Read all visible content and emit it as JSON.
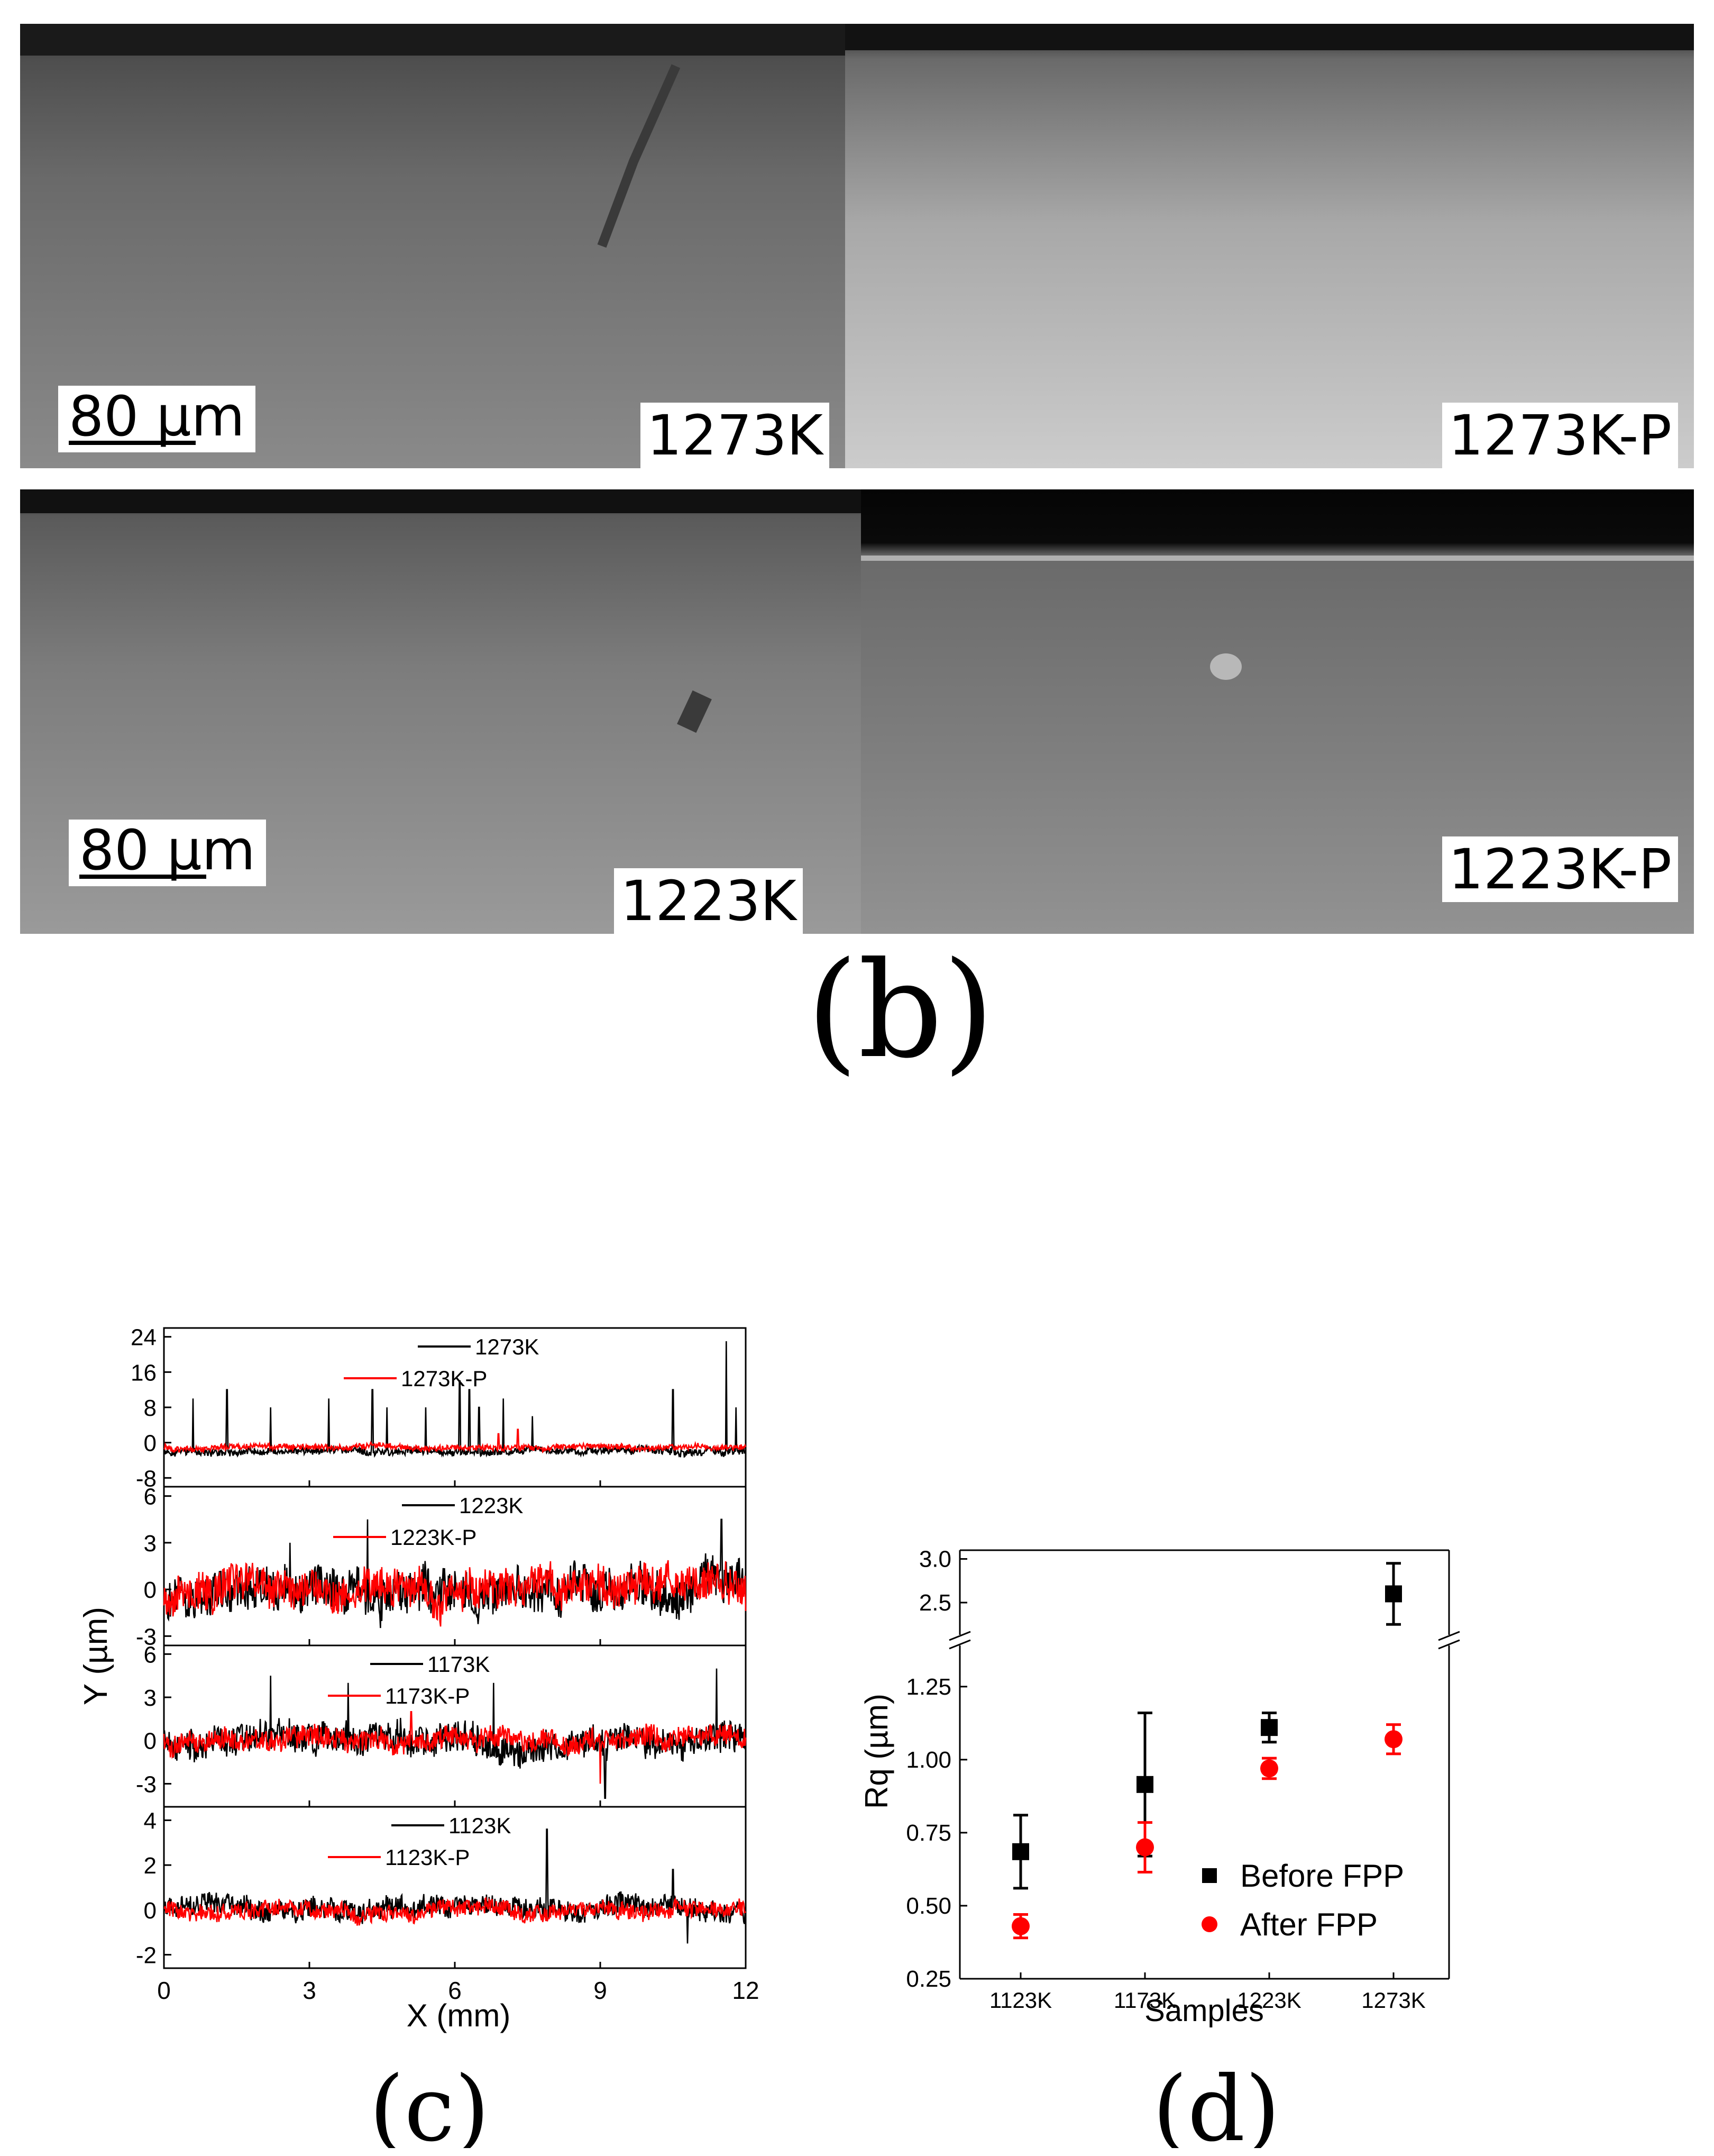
{
  "micrographs": [
    {
      "label": "1273K",
      "scale_bar": "80 µm"
    },
    {
      "label": "1273K-P"
    },
    {
      "label": "1223K",
      "scale_bar": "80 µm"
    },
    {
      "label": "1223K-P"
    }
  ],
  "panel_labels": {
    "b": "(b)",
    "c": "(c)",
    "d": "(d)"
  },
  "colors": {
    "black_series": "#000000",
    "red_series": "#ff0000",
    "micrograph_gray": "#6e6e6e"
  },
  "chart_data": [
    {
      "id": "c",
      "type": "line",
      "xlabel": "X (mm)",
      "ylabel": "Y (µm)",
      "xlim": [
        0,
        12
      ],
      "xticks": [
        "0",
        "3",
        "6",
        "9",
        "12"
      ],
      "panels": [
        {
          "series": [
            {
              "name": "1273K",
              "color": "#000000",
              "baseline": -2,
              "noise": 0.8,
              "spikes": [
                [
                  0.6,
                  10
                ],
                [
                  1.3,
                  12
                ],
                [
                  2.2,
                  8
                ],
                [
                  3.4,
                  10
                ],
                [
                  4.3,
                  12
                ],
                [
                  4.6,
                  8
                ],
                [
                  5.4,
                  8
                ],
                [
                  6.1,
                  14
                ],
                [
                  6.3,
                  12
                ],
                [
                  6.5,
                  8
                ],
                [
                  7.0,
                  10
                ],
                [
                  7.6,
                  6
                ],
                [
                  10.5,
                  12
                ],
                [
                  11.6,
                  23
                ],
                [
                  11.8,
                  8
                ]
              ]
            },
            {
              "name": "1273K-P",
              "color": "#ff0000",
              "baseline": -1,
              "noise": 0.6,
              "spikes": [
                [
                  6.9,
                  2
                ],
                [
                  7.3,
                  3
                ]
              ]
            }
          ],
          "yticks": [
            "24",
            "16",
            "8",
            "0",
            "-8"
          ],
          "ylim": [
            -10,
            26
          ]
        },
        {
          "series": [
            {
              "name": "1223K",
              "color": "#000000",
              "baseline": 0,
              "noise": 1.3,
              "spikes": [
                [
                  2.6,
                  3
                ],
                [
                  4.2,
                  4.5
                ],
                [
                  11.5,
                  4.5
                ]
              ]
            },
            {
              "name": "1223K-P",
              "color": "#ff0000",
              "baseline": 0,
              "noise": 1.2,
              "spikes": []
            }
          ],
          "yticks": [
            "6",
            "3",
            "0",
            "-3"
          ],
          "ylim": [
            -3.6,
            6.6
          ]
        },
        {
          "series": [
            {
              "name": "1173K",
              "color": "#000000",
              "baseline": 0,
              "noise": 1.0,
              "spikes": [
                [
                  2.2,
                  4.5
                ],
                [
                  3.8,
                  4
                ],
                [
                  6.8,
                  4
                ],
                [
                  9.1,
                  -4
                ],
                [
                  11.4,
                  5
                ]
              ]
            },
            {
              "name": "1173K-P",
              "color": "#ff0000",
              "baseline": 0,
              "noise": 0.7,
              "spikes": [
                [
                  5.1,
                  2
                ],
                [
                  9.0,
                  -3
                ]
              ]
            }
          ],
          "yticks": [
            "6",
            "3",
            "0",
            "-3"
          ],
          "ylim": [
            -4.6,
            6.6
          ]
        },
        {
          "series": [
            {
              "name": "1123K",
              "color": "#000000",
              "baseline": 0.1,
              "noise": 0.45,
              "spikes": [
                [
                  7.9,
                  3.6
                ],
                [
                  10.5,
                  1.8
                ],
                [
                  10.8,
                  -1.5
                ]
              ]
            },
            {
              "name": "1123K-P",
              "color": "#ff0000",
              "baseline": 0,
              "noise": 0.35,
              "spikes": []
            }
          ],
          "yticks": [
            "4",
            "2",
            "0",
            "-2"
          ],
          "ylim": [
            -2.6,
            4.6
          ]
        }
      ]
    },
    {
      "id": "d",
      "type": "scatter",
      "xlabel": "Samples",
      "ylabel": "Rq (µm)",
      "categories": [
        "1123K",
        "1173K",
        "1223K",
        "1273K"
      ],
      "yticks_lower": [
        "0.25",
        "0.50",
        "0.75",
        "1.00",
        "1.25"
      ],
      "yticks_upper": [
        "2.5",
        "3.0"
      ],
      "ylim_lower": [
        0.25,
        1.4
      ],
      "ylim_upper": [
        2.1,
        3.1
      ],
      "axis_break": true,
      "legend_position": "lower-right",
      "series": [
        {
          "name": "Before FPP",
          "marker": "square",
          "color": "#000000",
          "values": [
            0.685,
            0.915,
            1.11,
            2.6
          ],
          "errors": [
            0.125,
            0.245,
            0.05,
            0.35
          ]
        },
        {
          "name": "After FPP",
          "marker": "circle",
          "color": "#ff0000",
          "values": [
            0.43,
            0.7,
            0.97,
            1.07
          ],
          "errors": [
            0.04,
            0.085,
            0.035,
            0.05
          ]
        }
      ]
    }
  ]
}
